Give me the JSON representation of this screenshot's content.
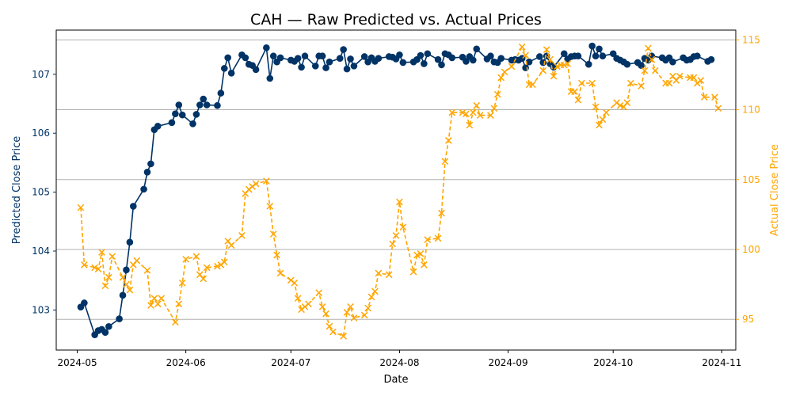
{
  "chart_data": {
    "type": "line",
    "title": "CAH — Raw Predicted vs. Actual Prices",
    "xlabel": "Date",
    "ylabel_left": "Predicted Close Price",
    "ylabel_right": "Actual Close Price",
    "colors": {
      "predicted": "#003366",
      "actual": "#FFA500",
      "grid": "#b0b0b0",
      "axis": "#000000"
    },
    "x_range": [
      "2024-04-25",
      "2024-11-05"
    ],
    "x_ticks": [
      {
        "date": "2024-05-01",
        "label": "2024-05"
      },
      {
        "date": "2024-06-01",
        "label": "2024-06"
      },
      {
        "date": "2024-07-01",
        "label": "2024-07"
      },
      {
        "date": "2024-08-01",
        "label": "2024-08"
      },
      {
        "date": "2024-09-01",
        "label": "2024-09"
      },
      {
        "date": "2024-10-01",
        "label": "2024-10"
      },
      {
        "date": "2024-11-01",
        "label": "2024-11"
      }
    ],
    "y_left": {
      "range": [
        102.32,
        107.75
      ],
      "ticks": [
        103,
        104,
        105,
        106,
        107
      ]
    },
    "y_right": {
      "range": [
        92.8,
        115.7
      ],
      "ticks": [
        95,
        100,
        105,
        110,
        115
      ]
    },
    "grid": "horizontal at right-axis ticks",
    "series": [
      {
        "name": "Predicted",
        "axis": "left",
        "marker": "circle",
        "line_style": "solid",
        "data": [
          [
            "2024-05-02",
            103.05
          ],
          [
            "2024-05-03",
            103.12
          ],
          [
            "2024-05-06",
            102.58
          ],
          [
            "2024-05-07",
            102.65
          ],
          [
            "2024-05-08",
            102.67
          ],
          [
            "2024-05-09",
            102.62
          ],
          [
            "2024-05-10",
            102.72
          ],
          [
            "2024-05-13",
            102.85
          ],
          [
            "2024-05-14",
            103.25
          ],
          [
            "2024-05-15",
            103.68
          ],
          [
            "2024-05-16",
            104.15
          ],
          [
            "2024-05-17",
            104.76
          ],
          [
            "2024-05-20",
            105.05
          ],
          [
            "2024-05-21",
            105.34
          ],
          [
            "2024-05-22",
            105.48
          ],
          [
            "2024-05-23",
            106.06
          ],
          [
            "2024-05-24",
            106.12
          ],
          [
            "2024-05-28",
            106.18
          ],
          [
            "2024-05-29",
            106.33
          ],
          [
            "2024-05-30",
            106.48
          ],
          [
            "2024-05-31",
            106.31
          ],
          [
            "2024-06-03",
            106.16
          ],
          [
            "2024-06-04",
            106.32
          ],
          [
            "2024-06-05",
            106.48
          ],
          [
            "2024-06-06",
            106.58
          ],
          [
            "2024-06-07",
            106.48
          ],
          [
            "2024-06-10",
            106.47
          ],
          [
            "2024-06-11",
            106.68
          ],
          [
            "2024-06-12",
            107.1
          ],
          [
            "2024-06-13",
            107.28
          ],
          [
            "2024-06-14",
            107.02
          ],
          [
            "2024-06-17",
            107.33
          ],
          [
            "2024-06-18",
            107.28
          ],
          [
            "2024-06-19",
            107.17
          ],
          [
            "2024-06-20",
            107.15
          ],
          [
            "2024-06-21",
            107.08
          ],
          [
            "2024-06-24",
            107.45
          ],
          [
            "2024-06-25",
            106.93
          ],
          [
            "2024-06-26",
            107.31
          ],
          [
            "2024-06-27",
            107.21
          ],
          [
            "2024-06-28",
            107.28
          ],
          [
            "2024-07-01",
            107.24
          ],
          [
            "2024-07-02",
            107.22
          ],
          [
            "2024-07-03",
            107.27
          ],
          [
            "2024-07-04",
            107.12
          ],
          [
            "2024-07-05",
            107.31
          ],
          [
            "2024-07-08",
            107.14
          ],
          [
            "2024-07-09",
            107.31
          ],
          [
            "2024-07-10",
            107.31
          ],
          [
            "2024-07-11",
            107.11
          ],
          [
            "2024-07-12",
            107.21
          ],
          [
            "2024-07-15",
            107.27
          ],
          [
            "2024-07-16",
            107.42
          ],
          [
            "2024-07-17",
            107.09
          ],
          [
            "2024-07-18",
            107.26
          ],
          [
            "2024-07-19",
            107.14
          ],
          [
            "2024-07-22",
            107.3
          ],
          [
            "2024-07-23",
            107.21
          ],
          [
            "2024-07-24",
            107.28
          ],
          [
            "2024-07-25",
            107.22
          ],
          [
            "2024-07-26",
            107.27
          ],
          [
            "2024-07-29",
            107.3
          ],
          [
            "2024-07-30",
            107.29
          ],
          [
            "2024-07-31",
            107.26
          ],
          [
            "2024-08-01",
            107.33
          ],
          [
            "2024-08-02",
            107.2
          ],
          [
            "2024-08-05",
            107.21
          ],
          [
            "2024-08-06",
            107.25
          ],
          [
            "2024-08-07",
            107.32
          ],
          [
            "2024-08-08",
            107.18
          ],
          [
            "2024-08-09",
            107.35
          ],
          [
            "2024-08-12",
            107.25
          ],
          [
            "2024-08-13",
            107.16
          ],
          [
            "2024-08-14",
            107.35
          ],
          [
            "2024-08-15",
            107.33
          ],
          [
            "2024-08-16",
            107.28
          ],
          [
            "2024-08-19",
            107.29
          ],
          [
            "2024-08-20",
            107.22
          ],
          [
            "2024-08-21",
            107.3
          ],
          [
            "2024-08-22",
            107.24
          ],
          [
            "2024-08-23",
            107.43
          ],
          [
            "2024-08-26",
            107.26
          ],
          [
            "2024-08-27",
            107.31
          ],
          [
            "2024-08-28",
            107.21
          ],
          [
            "2024-08-29",
            107.2
          ],
          [
            "2024-08-30",
            107.27
          ],
          [
            "2024-09-02",
            107.24
          ],
          [
            "2024-09-03",
            107.25
          ],
          [
            "2024-09-04",
            107.24
          ],
          [
            "2024-09-05",
            107.27
          ],
          [
            "2024-09-06",
            107.11
          ],
          [
            "2024-09-07",
            107.21
          ],
          [
            "2024-09-10",
            107.3
          ],
          [
            "2024-09-11",
            107.2
          ],
          [
            "2024-09-12",
            107.31
          ],
          [
            "2024-09-13",
            107.18
          ],
          [
            "2024-09-14",
            107.12
          ],
          [
            "2024-09-17",
            107.35
          ],
          [
            "2024-09-18",
            107.26
          ],
          [
            "2024-09-19",
            107.3
          ],
          [
            "2024-09-20",
            107.31
          ],
          [
            "2024-09-21",
            107.31
          ],
          [
            "2024-09-24",
            107.17
          ],
          [
            "2024-09-25",
            107.48
          ],
          [
            "2024-09-26",
            107.31
          ],
          [
            "2024-09-27",
            107.43
          ],
          [
            "2024-09-28",
            107.31
          ],
          [
            "2024-10-01",
            107.35
          ],
          [
            "2024-10-02",
            107.27
          ],
          [
            "2024-10-03",
            107.24
          ],
          [
            "2024-10-04",
            107.21
          ],
          [
            "2024-10-05",
            107.17
          ],
          [
            "2024-10-08",
            107.2
          ],
          [
            "2024-10-09",
            107.15
          ],
          [
            "2024-10-10",
            107.27
          ],
          [
            "2024-10-11",
            107.24
          ],
          [
            "2024-10-12",
            107.31
          ],
          [
            "2024-10-15",
            107.28
          ],
          [
            "2024-10-16",
            107.24
          ],
          [
            "2024-10-17",
            107.28
          ],
          [
            "2024-10-18",
            107.21
          ],
          [
            "2024-10-21",
            107.28
          ],
          [
            "2024-10-22",
            107.24
          ],
          [
            "2024-10-23",
            107.25
          ],
          [
            "2024-10-24",
            107.3
          ],
          [
            "2024-10-25",
            107.31
          ],
          [
            "2024-10-28",
            107.22
          ],
          [
            "2024-10-29",
            107.25
          ]
        ]
      },
      {
        "name": "Actual",
        "axis": "right",
        "marker": "x",
        "line_style": "dashed",
        "data": [
          [
            "2024-05-02",
            103.0
          ],
          [
            "2024-05-03",
            98.9
          ],
          [
            "2024-05-06",
            98.7
          ],
          [
            "2024-05-07",
            98.6
          ],
          [
            "2024-05-08",
            99.8
          ],
          [
            "2024-05-09",
            97.4
          ],
          [
            "2024-05-10",
            98.0
          ],
          [
            "2024-05-11",
            99.5
          ],
          [
            "2024-05-14",
            98.0
          ],
          [
            "2024-05-15",
            97.5
          ],
          [
            "2024-05-16",
            97.1
          ],
          [
            "2024-05-17",
            98.9
          ],
          [
            "2024-05-18",
            99.2
          ],
          [
            "2024-05-21",
            98.5
          ],
          [
            "2024-05-22",
            96.0
          ],
          [
            "2024-05-23",
            96.5
          ],
          [
            "2024-05-24",
            96.1
          ],
          [
            "2024-05-25",
            96.5
          ],
          [
            "2024-05-29",
            94.8
          ],
          [
            "2024-05-30",
            96.1
          ],
          [
            "2024-05-31",
            97.6
          ],
          [
            "2024-06-01",
            99.3
          ],
          [
            "2024-06-04",
            99.5
          ],
          [
            "2024-06-05",
            98.2
          ],
          [
            "2024-06-06",
            97.9
          ],
          [
            "2024-06-07",
            98.7
          ],
          [
            "2024-06-10",
            98.8
          ],
          [
            "2024-06-11",
            98.9
          ],
          [
            "2024-06-12",
            99.1
          ],
          [
            "2024-06-13",
            100.6
          ],
          [
            "2024-06-14",
            100.3
          ],
          [
            "2024-06-17",
            101.0
          ],
          [
            "2024-06-18",
            104.0
          ],
          [
            "2024-06-19",
            104.3
          ],
          [
            "2024-06-20",
            104.5
          ],
          [
            "2024-06-21",
            104.7
          ],
          [
            "2024-06-24",
            104.9
          ],
          [
            "2024-06-25",
            103.1
          ],
          [
            "2024-06-26",
            101.1
          ],
          [
            "2024-06-27",
            99.6
          ],
          [
            "2024-06-28",
            98.3
          ],
          [
            "2024-07-01",
            97.8
          ],
          [
            "2024-07-02",
            97.6
          ],
          [
            "2024-07-03",
            96.5
          ],
          [
            "2024-07-04",
            95.7
          ],
          [
            "2024-07-05",
            95.9
          ],
          [
            "2024-07-06",
            96.1
          ],
          [
            "2024-07-09",
            96.9
          ],
          [
            "2024-07-10",
            95.9
          ],
          [
            "2024-07-11",
            95.4
          ],
          [
            "2024-07-12",
            94.5
          ],
          [
            "2024-07-13",
            94.1
          ],
          [
            "2024-07-16",
            93.8
          ],
          [
            "2024-07-17",
            95.5
          ],
          [
            "2024-07-18",
            95.9
          ],
          [
            "2024-07-19",
            95.1
          ],
          [
            "2024-07-22",
            95.3
          ],
          [
            "2024-07-23",
            95.8
          ],
          [
            "2024-07-24",
            96.6
          ],
          [
            "2024-07-25",
            97.0
          ],
          [
            "2024-07-26",
            98.3
          ],
          [
            "2024-07-29",
            98.2
          ],
          [
            "2024-07-30",
            100.4
          ],
          [
            "2024-07-31",
            101.0
          ],
          [
            "2024-08-01",
            103.4
          ],
          [
            "2024-08-02",
            101.6
          ],
          [
            "2024-08-05",
            98.4
          ],
          [
            "2024-08-06",
            99.6
          ],
          [
            "2024-08-07",
            99.7
          ],
          [
            "2024-08-08",
            98.9
          ],
          [
            "2024-08-09",
            100.7
          ],
          [
            "2024-08-12",
            100.8
          ],
          [
            "2024-08-13",
            102.6
          ],
          [
            "2024-08-14",
            106.3
          ],
          [
            "2024-08-15",
            107.8
          ],
          [
            "2024-08-16",
            109.8
          ],
          [
            "2024-08-19",
            109.8
          ],
          [
            "2024-08-20",
            109.7
          ],
          [
            "2024-08-21",
            108.9
          ],
          [
            "2024-08-22",
            109.8
          ],
          [
            "2024-08-23",
            110.3
          ],
          [
            "2024-08-24",
            109.6
          ],
          [
            "2024-08-27",
            109.6
          ],
          [
            "2024-08-28",
            110.1
          ],
          [
            "2024-08-29",
            111.1
          ],
          [
            "2024-08-30",
            112.3
          ],
          [
            "2024-08-31",
            112.7
          ],
          [
            "2024-09-02",
            113.1
          ],
          [
            "2024-09-05",
            114.5
          ],
          [
            "2024-09-06",
            113.9
          ],
          [
            "2024-09-07",
            111.8
          ],
          [
            "2024-09-08",
            111.8
          ],
          [
            "2024-09-11",
            112.8
          ],
          [
            "2024-09-12",
            114.3
          ],
          [
            "2024-09-13",
            113.6
          ],
          [
            "2024-09-14",
            112.4
          ],
          [
            "2024-09-15",
            113.1
          ],
          [
            "2024-09-16",
            113.2
          ],
          [
            "2024-09-17",
            113.2
          ],
          [
            "2024-09-18",
            113.3
          ],
          [
            "2024-09-19",
            111.3
          ],
          [
            "2024-09-20",
            111.3
          ],
          [
            "2024-09-21",
            110.7
          ],
          [
            "2024-09-22",
            111.9
          ],
          [
            "2024-09-25",
            111.9
          ],
          [
            "2024-09-26",
            110.2
          ],
          [
            "2024-09-27",
            108.9
          ],
          [
            "2024-09-28",
            109.3
          ],
          [
            "2024-09-29",
            109.8
          ],
          [
            "2024-10-02",
            110.5
          ],
          [
            "2024-10-03",
            110.3
          ],
          [
            "2024-10-04",
            110.2
          ],
          [
            "2024-10-05",
            110.5
          ],
          [
            "2024-10-06",
            111.9
          ],
          [
            "2024-10-09",
            111.7
          ],
          [
            "2024-10-10",
            112.8
          ],
          [
            "2024-10-11",
            114.4
          ],
          [
            "2024-10-12",
            113.6
          ],
          [
            "2024-10-13",
            112.8
          ],
          [
            "2024-10-16",
            111.9
          ],
          [
            "2024-10-17",
            111.9
          ],
          [
            "2024-10-18",
            112.4
          ],
          [
            "2024-10-19",
            112.1
          ],
          [
            "2024-10-20",
            112.4
          ],
          [
            "2024-10-23",
            112.3
          ],
          [
            "2024-10-24",
            112.3
          ],
          [
            "2024-10-25",
            111.9
          ],
          [
            "2024-10-26",
            112.1
          ],
          [
            "2024-10-27",
            110.9
          ],
          [
            "2024-10-30",
            110.9
          ],
          [
            "2024-10-31",
            110.1
          ]
        ]
      }
    ]
  }
}
